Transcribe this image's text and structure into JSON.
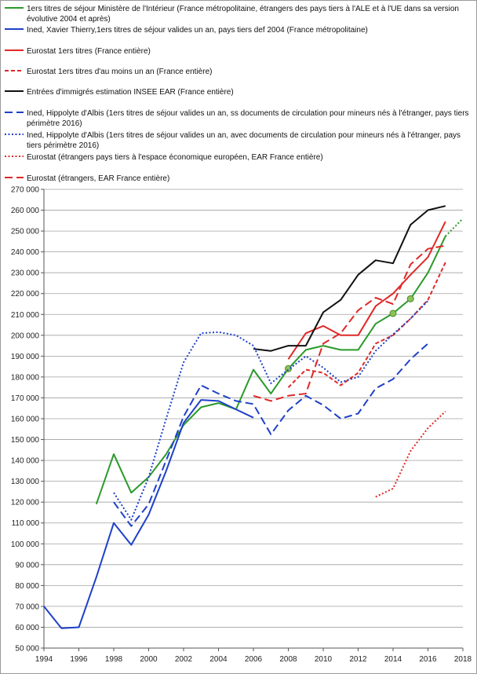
{
  "chart_data": {
    "type": "line",
    "xlim": [
      1994,
      2018
    ],
    "ylim": [
      50000,
      270000
    ],
    "x_ticks": [
      "1994",
      "1996",
      "1998",
      "2000",
      "2002",
      "2004",
      "2006",
      "2008",
      "2010",
      "2012",
      "2014",
      "2016",
      "2018"
    ],
    "y_ticks": [
      "50 000",
      "60 000",
      "70 000",
      "80 000",
      "90 000",
      "100 000",
      "110 000",
      "120 000",
      "130 000",
      "140 000",
      "150 000",
      "160 000",
      "170 000",
      "180 000",
      "190 000",
      "200 000",
      "210 000",
      "220 000",
      "230 000",
      "240 000",
      "250 000",
      "260 000",
      "270 000"
    ],
    "grid": true,
    "legend_position": "top",
    "series": [
      {
        "name": "1ers titres de séjour Ministère  de l'Intérieur (France métropolitaine, étrangers des pays tiers à l'ALE et à l'UE dans sa version évolutive 2004 et après)",
        "color": "#2a9a2a",
        "dash": "solid",
        "points": [
          [
            1997,
            119000
          ],
          [
            1998,
            143000
          ],
          [
            1999,
            124500
          ],
          [
            2000,
            132000
          ],
          [
            2001,
            143000
          ],
          [
            2002,
            157000
          ],
          [
            2003,
            165500
          ],
          [
            2004,
            167500
          ],
          [
            2005,
            164500
          ],
          [
            2006,
            183500
          ],
          [
            2007,
            172000
          ],
          [
            2008,
            184000
          ],
          [
            2009,
            193000
          ],
          [
            2010,
            195000
          ],
          [
            2011,
            193000
          ],
          [
            2012,
            193000
          ],
          [
            2013,
            205500
          ],
          [
            2014,
            210500
          ],
          [
            2015,
            217500
          ],
          [
            2016,
            230000
          ],
          [
            2017,
            247500
          ]
        ],
        "markers": [
          [
            2008,
            184000
          ],
          [
            2014,
            210500
          ],
          [
            2015,
            217500
          ]
        ]
      },
      {
        "name": "Ined, Xavier Thierry,1ers titres de séjour valides un an, pays tiers def 2004 (France métropolitaine)",
        "color": "#1e40c8",
        "dash": "solid",
        "points": [
          [
            1994,
            70000
          ],
          [
            1995,
            59500
          ],
          [
            1996,
            60000
          ],
          [
            1997,
            84000
          ],
          [
            1998,
            110000
          ],
          [
            1999,
            99500
          ],
          [
            2000,
            114000
          ],
          [
            2001,
            135000
          ],
          [
            2002,
            158000
          ],
          [
            2003,
            169000
          ],
          [
            2004,
            168500
          ],
          [
            2005,
            164500
          ],
          [
            2006,
            160500
          ]
        ]
      },
      {
        "name": "Eurostat 1ers titres (France entière)",
        "color": "#e02828",
        "dash": "solid",
        "points": [
          [
            2008,
            188500
          ],
          [
            2009,
            201000
          ],
          [
            2010,
            204500
          ],
          [
            2011,
            200000
          ],
          [
            2012,
            200000
          ],
          [
            2013,
            214000
          ],
          [
            2014,
            220000
          ],
          [
            2015,
            229000
          ],
          [
            2016,
            237500
          ],
          [
            2017,
            254500
          ]
        ]
      },
      {
        "name": "Eurostat 1ers titres d'au moins un an (France entière)",
        "color": "#e02828",
        "dash": "short-dash",
        "points": [
          [
            2008,
            175000
          ],
          [
            2009,
            183500
          ],
          [
            2010,
            182000
          ],
          [
            2011,
            176000
          ],
          [
            2012,
            182000
          ],
          [
            2013,
            196000
          ],
          [
            2014,
            200000
          ],
          [
            2015,
            208000
          ],
          [
            2016,
            217000
          ],
          [
            2017,
            235000
          ]
        ]
      },
      {
        "name": "Entrées d'immigrés estimation INSEE EAR (France entière)",
        "color": "#111111",
        "dash": "solid",
        "points": [
          [
            2006,
            193500
          ],
          [
            2007,
            192500
          ],
          [
            2008,
            195000
          ],
          [
            2009,
            195000
          ],
          [
            2010,
            211000
          ],
          [
            2011,
            217000
          ],
          [
            2012,
            229000
          ],
          [
            2013,
            236000
          ],
          [
            2014,
            234500
          ],
          [
            2015,
            253000
          ],
          [
            2016,
            260000
          ],
          [
            2017,
            262000
          ]
        ]
      },
      {
        "name": "Ined, Hippolyte d'Albis (1ers titres de séjour valides un an, ss documents de circulation pour mineurs nés à l'étranger, pays tiers périmètre 2016)",
        "color": "#1e40c8",
        "dash": "long-dash",
        "points": [
          [
            1998,
            120000
          ],
          [
            1999,
            108500
          ],
          [
            2000,
            119000
          ],
          [
            2001,
            140000
          ],
          [
            2002,
            161000
          ],
          [
            2003,
            176000
          ],
          [
            2004,
            172000
          ],
          [
            2005,
            168500
          ],
          [
            2006,
            167000
          ],
          [
            2007,
            152500
          ],
          [
            2008,
            164000
          ],
          [
            2009,
            171000
          ],
          [
            2010,
            166500
          ],
          [
            2011,
            160000
          ],
          [
            2012,
            162500
          ],
          [
            2013,
            174500
          ],
          [
            2014,
            179000
          ],
          [
            2015,
            188500
          ],
          [
            2016,
            196000
          ]
        ]
      },
      {
        "name": "Ined, Hippolyte d'Albis (1ers titres de séjour valides un an, avec documents de circulation pour mineurs nés à l'étranger, pays tiers périmètre 2016)",
        "color": "#1e40c8",
        "dash": "dotted",
        "points": [
          [
            1998,
            124500
          ],
          [
            1999,
            111500
          ],
          [
            2000,
            132000
          ],
          [
            2001,
            160000
          ],
          [
            2002,
            187000
          ],
          [
            2003,
            201000
          ],
          [
            2004,
            201500
          ],
          [
            2005,
            200000
          ],
          [
            2006,
            195000
          ],
          [
            2007,
            177000
          ],
          [
            2008,
            183500
          ],
          [
            2009,
            190000
          ],
          [
            2010,
            184500
          ],
          [
            2011,
            177500
          ],
          [
            2012,
            180000
          ],
          [
            2013,
            192500
          ],
          [
            2014,
            200500
          ],
          [
            2015,
            208000
          ],
          [
            2016,
            216500
          ]
        ]
      },
      {
        "name": "Eurostat (étrangers pays tiers à l'espace économique européen, EAR France entière)",
        "color": "#e02828",
        "dash": "dotted",
        "points": [
          [
            2013,
            122500
          ],
          [
            2014,
            126500
          ],
          [
            2015,
            144500
          ],
          [
            2016,
            155500
          ],
          [
            2017,
            163500
          ]
        ]
      },
      {
        "name": "Eurostat (étrangers,  EAR France entière)",
        "color": "#e02828",
        "dash": "long-dash",
        "points": [
          [
            2006,
            171000
          ],
          [
            2007,
            168500
          ],
          [
            2008,
            171000
          ],
          [
            2009,
            172000
          ],
          [
            2010,
            196000
          ],
          [
            2011,
            201000
          ],
          [
            2012,
            212000
          ],
          [
            2013,
            218000
          ],
          [
            2014,
            215000
          ],
          [
            2015,
            234000
          ],
          [
            2016,
            241500
          ],
          [
            2017,
            243000
          ]
        ]
      },
      {
        "name": "",
        "color": "#2a9a2a",
        "dash": "dotted",
        "points": [
          [
            2017,
            247500
          ],
          [
            2018,
            256000
          ]
        ]
      }
    ]
  }
}
